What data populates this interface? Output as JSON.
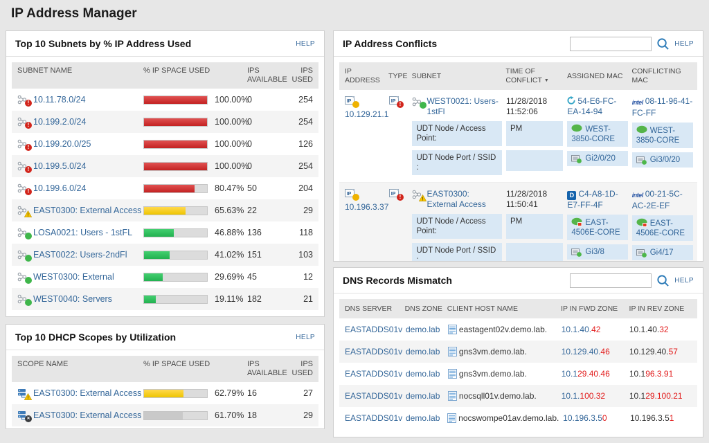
{
  "page": {
    "title": "IP Address Manager"
  },
  "colors": {
    "link": "#336699",
    "critical_red": "#d2251c",
    "warning_yellow": "#f2c500",
    "up_green": "#3fb64b",
    "bar_red": "#cc2d2d",
    "bar_yellow": "#f2cb05",
    "bar_green": "#2fbf5f",
    "bar_gray": "#c9c9c9",
    "mismatch_red": "#e21b1b",
    "conflict_box_blue": "#d9e8f5"
  },
  "subnets_panel": {
    "title": "Top 10 Subnets by % IP Address Used",
    "help": "HELP",
    "columns": [
      "SUBNET NAME",
      "% IP SPACE USED",
      "IPS AVAILABLE",
      "IPS USED"
    ],
    "rows": [
      {
        "name": "10.11.78.0/24",
        "status": "critical",
        "bar": "red",
        "pct": 100,
        "pct_label": "100.00%",
        "available": "0",
        "used": "254"
      },
      {
        "name": "10.199.2.0/24",
        "status": "critical",
        "bar": "red",
        "pct": 100,
        "pct_label": "100.00%",
        "available": "0",
        "used": "254"
      },
      {
        "name": "10.199.20.0/25",
        "status": "critical",
        "bar": "red",
        "pct": 100,
        "pct_label": "100.00%",
        "available": "0",
        "used": "126"
      },
      {
        "name": "10.199.5.0/24",
        "status": "critical",
        "bar": "red",
        "pct": 100,
        "pct_label": "100.00%",
        "available": "0",
        "used": "254"
      },
      {
        "name": "10.199.6.0/24",
        "status": "critical",
        "bar": "red",
        "pct": 80.47,
        "pct_label": "80.47%",
        "available": "50",
        "used": "204"
      },
      {
        "name": "EAST0300: External Access",
        "status": "warning",
        "bar": "yellow",
        "pct": 65.63,
        "pct_label": "65.63%",
        "available": "22",
        "used": "29"
      },
      {
        "name": "LOSA0021: Users - 1stFL",
        "status": "up",
        "bar": "green",
        "pct": 46.88,
        "pct_label": "46.88%",
        "available": "136",
        "used": "118"
      },
      {
        "name": "EAST0022: Users-2ndFl",
        "status": "up",
        "bar": "green",
        "pct": 41.02,
        "pct_label": "41.02%",
        "available": "151",
        "used": "103"
      },
      {
        "name": "WEST0300: External",
        "status": "up",
        "bar": "green",
        "pct": 29.69,
        "pct_label": "29.69%",
        "available": "45",
        "used": "12"
      },
      {
        "name": "WEST0040: Servers",
        "status": "up",
        "bar": "green",
        "pct": 19.11,
        "pct_label": "19.11%",
        "available": "182",
        "used": "21"
      }
    ]
  },
  "dhcp_panel": {
    "title": "Top 10 DHCP Scopes by Utilization",
    "help": "HELP",
    "columns": [
      "SCOPE NAME",
      "% IP SPACE USED",
      "IPS AVAILABLE",
      "IPS USED"
    ],
    "rows": [
      {
        "name": "EAST0300: External Access",
        "status": "warning",
        "bar": "yellow",
        "pct": 62.79,
        "pct_label": "62.79%",
        "available": "16",
        "used": "27"
      },
      {
        "name": "EAST0300: External Access",
        "status": "unknown",
        "bar": "gray",
        "pct": 61.7,
        "pct_label": "61.70%",
        "available": "18",
        "used": "29"
      }
    ]
  },
  "conflicts_panel": {
    "title": "IP Address Conflicts",
    "help": "HELP",
    "search_value": "",
    "sort_arrow": "▼",
    "columns": [
      "IP ADDRESS",
      "TYPE",
      "SUBNET",
      "TIME OF CONFLICT",
      "ASSIGNED MAC",
      "CONFLICTING MAC"
    ],
    "udt_labels": {
      "node": "UDT Node / Access Point:",
      "port": "UDT Node Port / SSID :"
    },
    "rows": [
      {
        "ip": "10.129.21.1",
        "subnet": "WEST0021: Users-1stFl",
        "subnet_status": "up",
        "time_date": "11/28/2018",
        "time_time": "11:52:06",
        "time_ampm": "PM",
        "assigned": {
          "vendor": "generic",
          "mac": "54-E6-FC-EA-14-94",
          "node": "WEST-3850-CORE",
          "node_status": "up",
          "port": "Gi2/0/20"
        },
        "conflicting": {
          "vendor": "intel",
          "mac": "08-11-96-41-FC-FF",
          "node": "WEST-3850-CORE",
          "node_status": "up",
          "port": "Gi3/0/20"
        }
      },
      {
        "ip": "10.196.3.37",
        "subnet": "EAST0300: External Access",
        "subnet_status": "warning",
        "time_date": "11/28/2018",
        "time_time": "11:50:41",
        "time_ampm": "PM",
        "assigned": {
          "vendor": "dell",
          "mac": "C4-A8-1D-E7-FF-4F",
          "node": "EAST-4506E-CORE",
          "node_status": "warning",
          "port": "Gi3/8"
        },
        "conflicting": {
          "vendor": "intel",
          "mac": "00-21-5C-AC-2E-EF",
          "node": "EAST-4506E-CORE",
          "node_status": "warning",
          "port": "Gi4/17"
        }
      }
    ]
  },
  "dns_panel": {
    "title": "DNS Records Mismatch",
    "help": "HELP",
    "search_value": "",
    "columns": [
      "DNS SERVER",
      "DNS ZONE",
      "CLIENT HOST NAME",
      "IP IN FWD ZONE",
      "IP IN REV ZONE"
    ],
    "rows": [
      {
        "server": "EASTADDS01v",
        "zone": "demo.lab",
        "host": "eastagent02v.demo.lab.",
        "fwd_prefix": "10.1.40.",
        "fwd_red": "42",
        "rev_prefix": "10.1.40.",
        "rev_red": "32"
      },
      {
        "server": "EASTADDS01v",
        "zone": "demo.lab",
        "host": "gns3vm.demo.lab.",
        "fwd_prefix": "10.129.40.",
        "fwd_red": "46",
        "rev_prefix": "10.129.40.",
        "rev_red": "57"
      },
      {
        "server": "EASTADDS01v",
        "zone": "demo.lab",
        "host": "gns3vm.demo.lab.",
        "fwd_prefix": "10.1",
        "fwd_red": "29.40.46",
        "rev_prefix": "10.1",
        "rev_red": "96.3.91"
      },
      {
        "server": "EASTADDS01v",
        "zone": "demo.lab",
        "host": "nocsqll01v.demo.lab.",
        "fwd_prefix": "10.1.",
        "fwd_red": "100.32",
        "rev_prefix": "10.1",
        "rev_red": "29.100.21"
      },
      {
        "server": "EASTADDS01v",
        "zone": "demo.lab",
        "host": "nocswompe01av.demo.lab.",
        "fwd_prefix": "10.196.3.5",
        "fwd_red": "0",
        "rev_prefix": "10.196.3.5",
        "rev_red": "1"
      }
    ]
  }
}
